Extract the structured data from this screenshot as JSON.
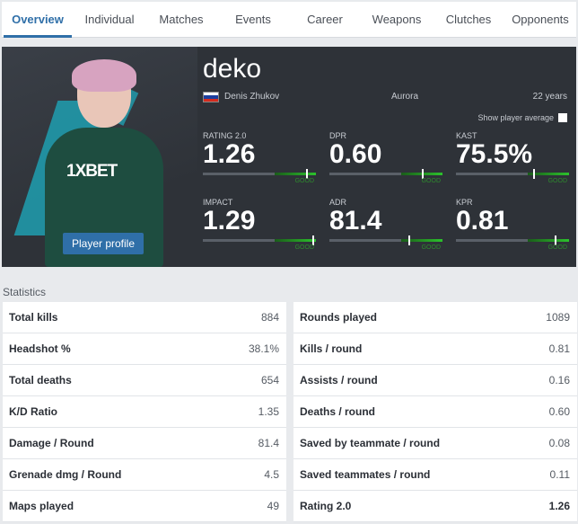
{
  "tabs": [
    "Overview",
    "Individual",
    "Matches",
    "Events",
    "Career",
    "Weapons",
    "Clutches",
    "Opponents"
  ],
  "player": {
    "nickname": "deko",
    "real_name": "Denis Zhukov",
    "team": "Aurora",
    "age": "22 years",
    "jersey_sponsor": "1XBET",
    "profile_button": "Player profile"
  },
  "show_average_label": "Show player average",
  "bar_tag": "GOOD",
  "top_stats": [
    {
      "label": "RATING 2.0",
      "value": "1.26"
    },
    {
      "label": "DPR",
      "value": "0.60"
    },
    {
      "label": "KAST",
      "value": "75.5%"
    },
    {
      "label": "IMPACT",
      "value": "1.29"
    },
    {
      "label": "ADR",
      "value": "81.4"
    },
    {
      "label": "KPR",
      "value": "0.81"
    }
  ],
  "statistics_title": "Statistics",
  "stats_left": [
    {
      "k": "Total kills",
      "v": "884"
    },
    {
      "k": "Headshot %",
      "v": "38.1%"
    },
    {
      "k": "Total deaths",
      "v": "654"
    },
    {
      "k": "K/D Ratio",
      "v": "1.35"
    },
    {
      "k": "Damage / Round",
      "v": "81.4"
    },
    {
      "k": "Grenade dmg / Round",
      "v": "4.5"
    },
    {
      "k": "Maps played",
      "v": "49"
    }
  ],
  "stats_right": [
    {
      "k": "Rounds played",
      "v": "1089"
    },
    {
      "k": "Kills / round",
      "v": "0.81"
    },
    {
      "k": "Assists / round",
      "v": "0.16"
    },
    {
      "k": "Deaths / round",
      "v": "0.60"
    },
    {
      "k": "Saved by teammate / round",
      "v": "0.08"
    },
    {
      "k": "Saved teammates / round",
      "v": "0.11"
    },
    {
      "k": "Rating 2.0",
      "v": "1.26"
    }
  ],
  "colors": {
    "accent": "#2f6fa8",
    "hero_bg": "#2e3238",
    "good_green": "#2cc22c"
  }
}
